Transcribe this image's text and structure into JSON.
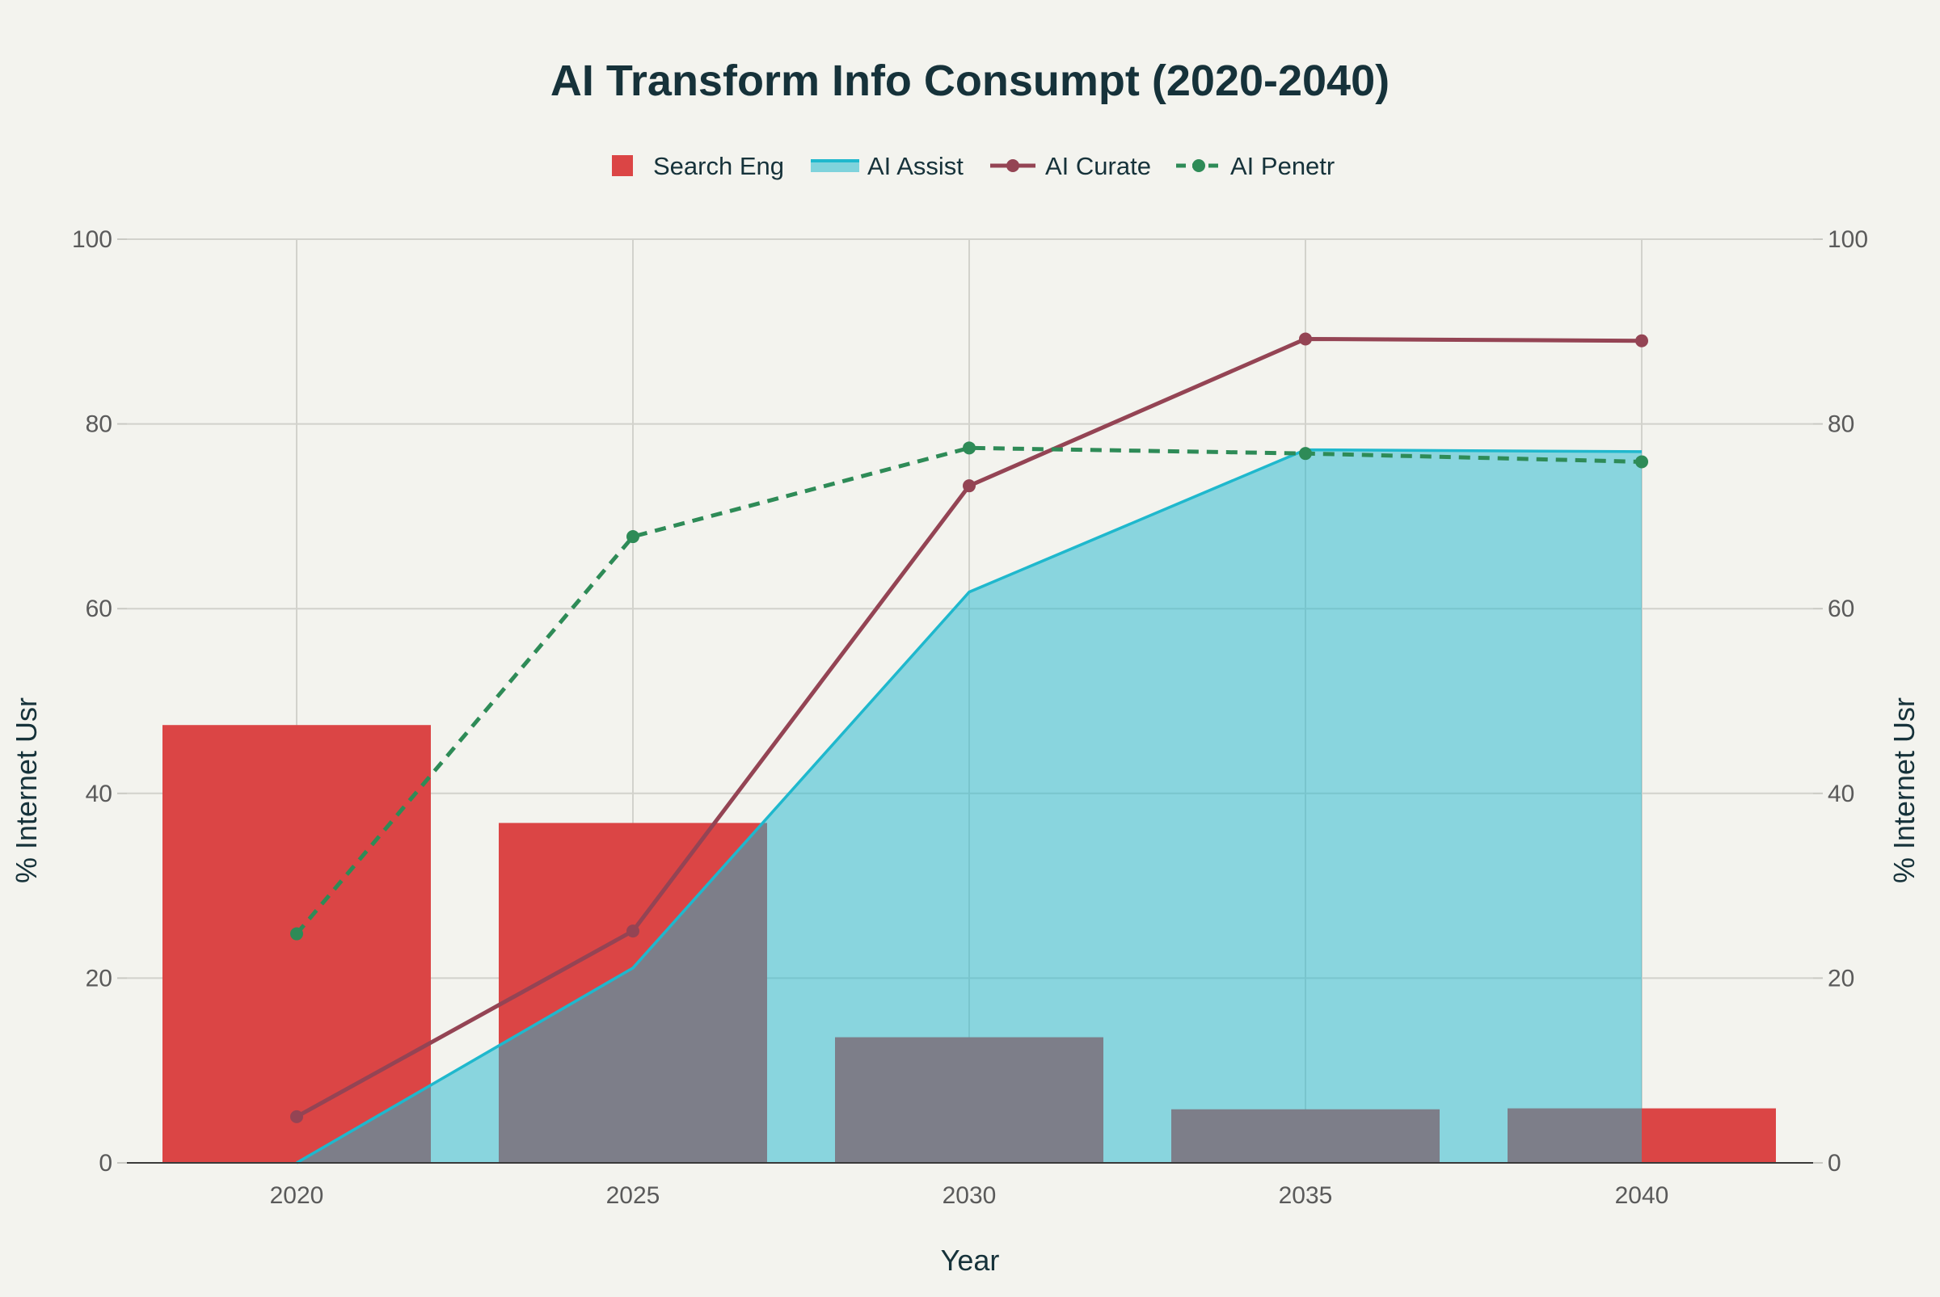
{
  "chart_data": {
    "type": "bar",
    "title": "AI Transform Info Consumpt (2020-2040)",
    "xlabel": "Year",
    "ylabel": "% Internet Usr",
    "y2label": "% Internet Usr",
    "categories": [
      "2020",
      "2025",
      "2030",
      "2035",
      "2040"
    ],
    "ylim": [
      0,
      100
    ],
    "y2lim": [
      0,
      100
    ],
    "yticks": [
      0,
      20,
      40,
      60,
      80,
      100
    ],
    "grid": true,
    "legend_position": "top-center",
    "series": [
      {
        "name": "Search Eng",
        "type": "bar",
        "color": "#db4545",
        "values": [
          47.4,
          36.8,
          13.6,
          5.8,
          5.9
        ]
      },
      {
        "name": "AI Assist",
        "type": "area",
        "color": "#1fb8cd",
        "values": [
          0.0,
          21.1,
          61.8,
          77.2,
          77.0
        ]
      },
      {
        "name": "AI Curate",
        "type": "line",
        "color": "#944454",
        "values": [
          5.0,
          25.1,
          73.3,
          89.2,
          89.0
        ]
      },
      {
        "name": "AI Penetr",
        "type": "line",
        "line_style": "dashed",
        "color": "#2e8b57",
        "values": [
          24.8,
          67.8,
          77.4,
          76.8,
          75.9
        ]
      }
    ]
  }
}
